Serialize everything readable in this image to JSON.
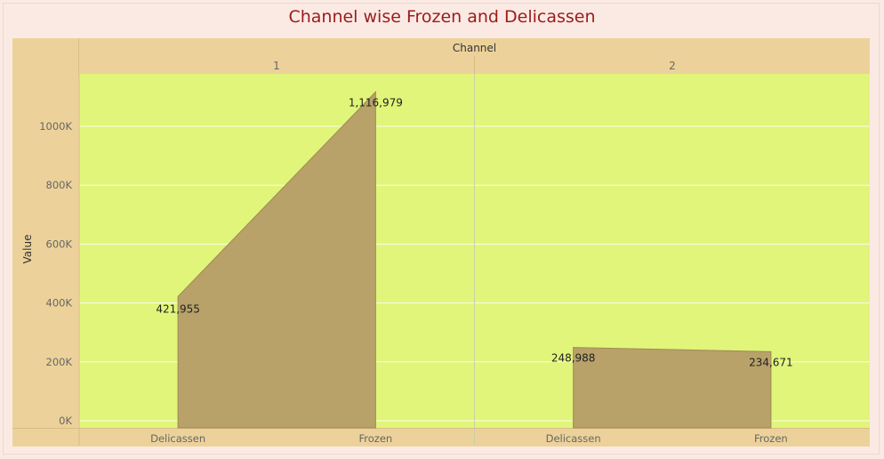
{
  "title": "Channel wise Frozen and Delicassen",
  "colors": {
    "plot_bg": "#e1f57a",
    "area_fill": "#b8a269",
    "area_stroke": "#9f8a52",
    "band": "#ecd29a",
    "title": "#9b1b1b"
  },
  "chart_data": {
    "type": "area",
    "column_header": "Channel",
    "panes": [
      {
        "label": "1",
        "x": [
          "Delicassen",
          "Frozen"
        ],
        "values": [
          421955,
          1116979
        ],
        "value_labels": [
          "421,955",
          "1,116,979"
        ]
      },
      {
        "label": "2",
        "x": [
          "Delicassen",
          "Frozen"
        ],
        "values": [
          248988,
          234671
        ],
        "value_labels": [
          "248,988",
          "234,671"
        ]
      }
    ],
    "ylabel": "Value",
    "y_ticks": [
      0,
      200000,
      400000,
      600000,
      800000,
      1000000
    ],
    "y_tick_labels": [
      "0K",
      "200K",
      "400K",
      "600K",
      "800K",
      "1000K"
    ],
    "ylim": [
      0,
      1100000
    ],
    "grid": true
  }
}
